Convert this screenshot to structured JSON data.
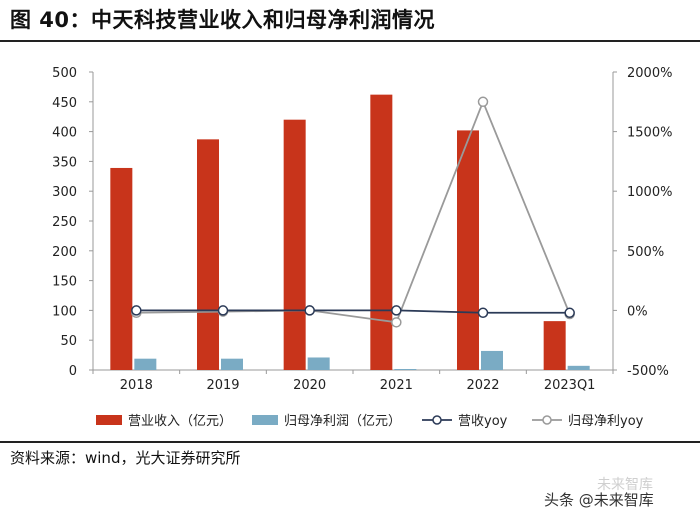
{
  "header": {
    "title": "图 40：中天科技营业收入和归母净利润情况"
  },
  "footer": {
    "source": "资料来源：wind，光大证券研究所"
  },
  "watermark": {
    "line1": "未来智库",
    "line2": "头条 @未来智库"
  },
  "colors": {
    "revenue": "#c8341b",
    "profit": "#7aabc4",
    "revenue_yoy": "#2b3a57",
    "profit_yoy": "#9a9a9a"
  },
  "chart_data": {
    "type": "bar",
    "title": "中天科技营业收入和归母净利润情况",
    "categories": [
      "2018",
      "2019",
      "2020",
      "2021",
      "2022",
      "2023Q1"
    ],
    "series": [
      {
        "name": "营业收入（亿元）",
        "axis": "left",
        "kind": "bar",
        "values": [
          339,
          387,
          420,
          462,
          402,
          82
        ]
      },
      {
        "name": "归母净利润（亿元）",
        "axis": "left",
        "kind": "bar",
        "values": [
          19,
          19,
          21,
          1,
          32,
          7
        ]
      },
      {
        "name": "营收yoy",
        "axis": "right",
        "kind": "line",
        "values": [
          0,
          0,
          0,
          0,
          -20,
          -20
        ]
      },
      {
        "name": "归母净利yoy",
        "axis": "right",
        "kind": "line",
        "values": [
          -20,
          -10,
          0,
          -100,
          1750,
          -30
        ]
      }
    ],
    "left_axis": {
      "min": 0,
      "max": 500,
      "ticks": [
        0,
        50,
        100,
        150,
        200,
        250,
        300,
        350,
        400,
        450,
        500
      ]
    },
    "right_axis": {
      "min": -500,
      "max": 2000,
      "ticks": [
        -500,
        0,
        500,
        1000,
        1500,
        2000
      ],
      "tick_labels": [
        "-500%",
        "0%",
        "500%",
        "1000%",
        "1500%",
        "2000%"
      ]
    },
    "legend": [
      "营业收入（亿元）",
      "归母净利润（亿元）",
      "营收yoy",
      "归母净利yoy"
    ],
    "legend_position": "bottom",
    "grid": false
  }
}
